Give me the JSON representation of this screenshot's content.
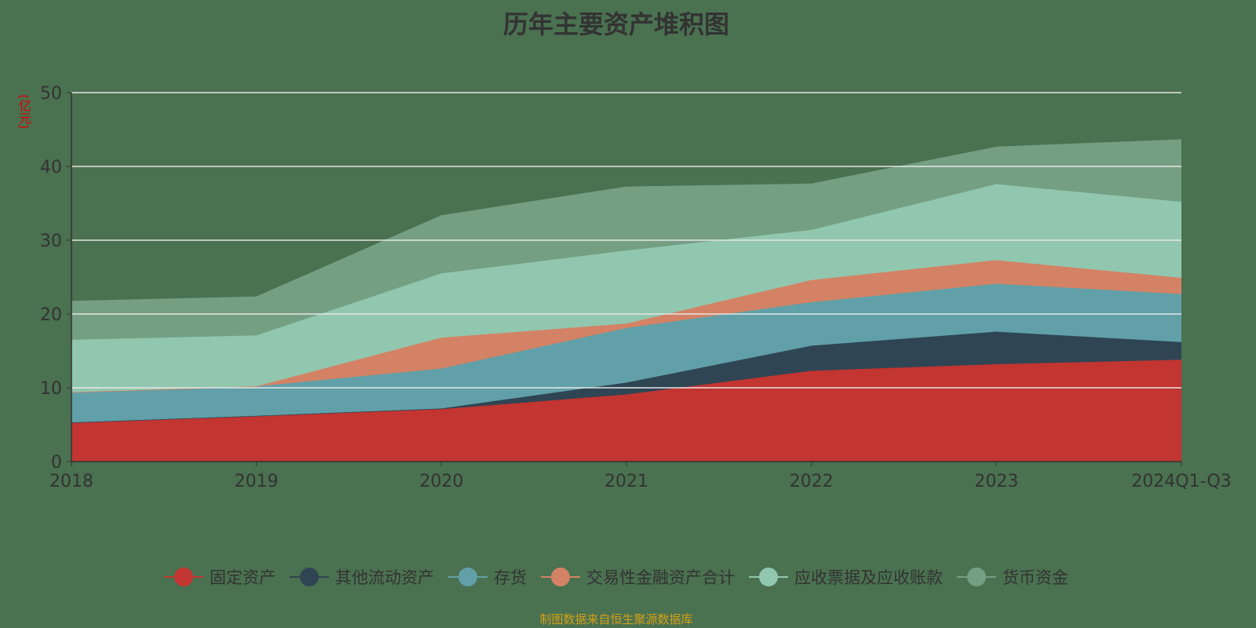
{
  "chart_data": {
    "type": "area",
    "stacked": true,
    "title": "历年主要资产堆积图",
    "ylabel": "(亿元)",
    "xlabel": "",
    "categories": [
      "2018",
      "2019",
      "2020",
      "2021",
      "2022",
      "2023",
      "2024Q1-Q3"
    ],
    "ylim": [
      0,
      50
    ],
    "yticks": [
      0,
      10,
      20,
      30,
      40,
      50
    ],
    "grid": true,
    "legend_position": "bottom",
    "series": [
      {
        "name": "固定资产",
        "color": "#c23531",
        "values": [
          5.3,
          6.2,
          7.1,
          9.1,
          12.3,
          13.2,
          13.8
        ]
      },
      {
        "name": "其他流动资产",
        "color": "#2f4554",
        "values": [
          0,
          0,
          0.1,
          1.6,
          3.4,
          4.4,
          2.4
        ]
      },
      {
        "name": "存货",
        "color": "#61a0a8",
        "values": [
          4.1,
          4.0,
          5.4,
          7.4,
          5.9,
          6.5,
          6.5
        ]
      },
      {
        "name": "交易性金融资产合计",
        "color": "#d48265",
        "values": [
          0,
          0,
          4.2,
          0.6,
          3.0,
          3.2,
          2.2
        ]
      },
      {
        "name": "应收票据及应收账款",
        "color": "#91c7ae",
        "values": [
          7.1,
          6.9,
          8.7,
          9.9,
          6.8,
          10.3,
          10.3
        ]
      },
      {
        "name": "货币资金",
        "color": "#749f83",
        "values": [
          5.2,
          5.2,
          7.8,
          8.6,
          6.2,
          5.0,
          8.4
        ]
      }
    ]
  },
  "source": "制图数据来自恒生聚源数据库"
}
